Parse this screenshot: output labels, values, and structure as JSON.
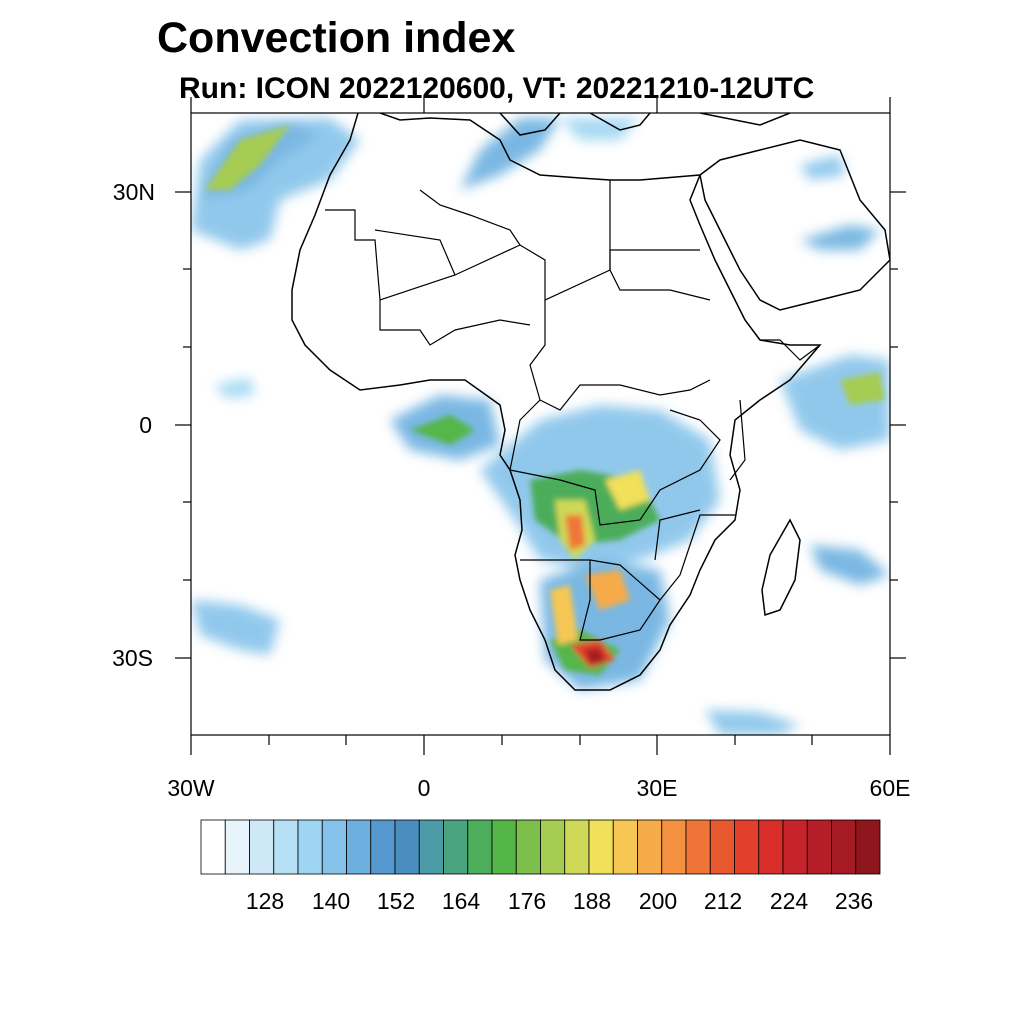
{
  "title": "Convection index",
  "subtitle": "Run: ICON 2022120600,  VT: 20221210-12UTC",
  "map": {
    "lon_range": [
      -30,
      60
    ],
    "lat_range": [
      -40,
      40
    ],
    "lat_ticks": [
      {
        "value": 30,
        "label": "30N"
      },
      {
        "value": 0,
        "label": "0"
      },
      {
        "value": -30,
        "label": "30S"
      }
    ],
    "lon_ticks": [
      {
        "value": -30,
        "label": "30W"
      },
      {
        "value": 0,
        "label": "0"
      },
      {
        "value": 30,
        "label": "30E"
      },
      {
        "value": 60,
        "label": "60E"
      }
    ],
    "region": "Africa",
    "field": "Convection index"
  },
  "colorbar": {
    "min": 116,
    "step": 4,
    "labels": [
      "128",
      "140",
      "152",
      "164",
      "176",
      "188",
      "200",
      "212",
      "224",
      "236"
    ],
    "colors": [
      "#ffffff",
      "#e8f4fb",
      "#cfe8f7",
      "#b6e0f5",
      "#9dd5f2",
      "#85c3ea",
      "#6cb0e0",
      "#5598cf",
      "#4a8ec0",
      "#4b9aa5",
      "#4aa47f",
      "#4cad5a",
      "#55b648",
      "#7cbf4a",
      "#a6cc52",
      "#cfd957",
      "#f0e05a",
      "#f6c753",
      "#f6ab4a",
      "#f39140",
      "#ef7437",
      "#e8582f",
      "#e2402b",
      "#d92d2a",
      "#c7232a",
      "#b51d27",
      "#a51a23",
      "#8f161d"
    ]
  }
}
